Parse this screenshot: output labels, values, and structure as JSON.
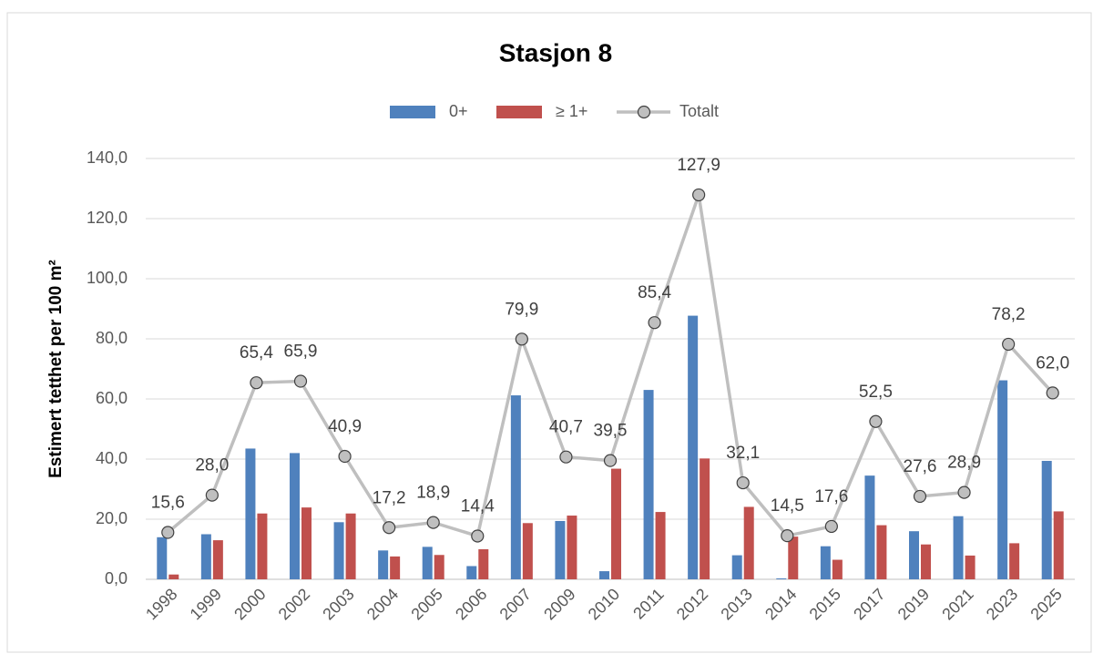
{
  "chart_data": {
    "type": "bar_line",
    "title": "Stasjon 8",
    "y_label": "Estimert tetthet per 100 m²",
    "categories": [
      "1998",
      "1999",
      "2000",
      "2002",
      "2003",
      "2004",
      "2005",
      "2006",
      "2007",
      "2009",
      "2010",
      "2011",
      "2012",
      "2013",
      "2014",
      "2015",
      "2017",
      "2019",
      "2021",
      "2023",
      "2025"
    ],
    "series": [
      {
        "name": "0+",
        "color": "#4f81bd",
        "type": "bar",
        "values": [
          14.0,
          15.0,
          43.5,
          42.0,
          19.0,
          9.6,
          10.8,
          4.4,
          61.2,
          19.4,
          2.7,
          63.0,
          87.7,
          8.0,
          0.3,
          11.0,
          34.5,
          16.0,
          21.0,
          66.2,
          39.4
        ]
      },
      {
        "name": "≥ 1+",
        "color": "#c0504d",
        "type": "bar",
        "values": [
          1.6,
          13.0,
          21.9,
          23.9,
          21.9,
          7.6,
          8.1,
          10.0,
          18.7,
          21.2,
          36.8,
          22.4,
          40.2,
          24.1,
          14.2,
          6.5,
          18.0,
          11.6,
          7.9,
          12.0,
          22.6
        ]
      },
      {
        "name": "Totalt",
        "color": "#bfbfbf",
        "type": "line",
        "values": [
          15.6,
          28.0,
          65.4,
          65.9,
          40.9,
          17.2,
          18.9,
          14.4,
          79.9,
          40.7,
          39.5,
          85.4,
          127.9,
          32.1,
          14.5,
          17.6,
          52.5,
          27.6,
          28.9,
          78.2,
          62.0
        ],
        "value_labels": [
          "15,6",
          "28,0",
          "65,4",
          "65,9",
          "40,9",
          "17,2",
          "18,9",
          "14,4",
          "79,9",
          "40,7",
          "39,5",
          "85,4",
          "127,9",
          "32,1",
          "14,5",
          "17,6",
          "52,5",
          "27,6",
          "28,9",
          "78,2",
          "62,0"
        ]
      }
    ],
    "ylim": [
      0,
      140
    ],
    "yticks": [
      {
        "value": 0,
        "label": "0,0"
      },
      {
        "value": 20,
        "label": "20,0"
      },
      {
        "value": 40,
        "label": "40,0"
      },
      {
        "value": 60,
        "label": "60,0"
      },
      {
        "value": 80,
        "label": "80,0"
      },
      {
        "value": 100,
        "label": "100,0"
      },
      {
        "value": 120,
        "label": "120,0"
      },
      {
        "value": 140,
        "label": "140,0"
      }
    ],
    "grid": true,
    "legend": "top"
  }
}
